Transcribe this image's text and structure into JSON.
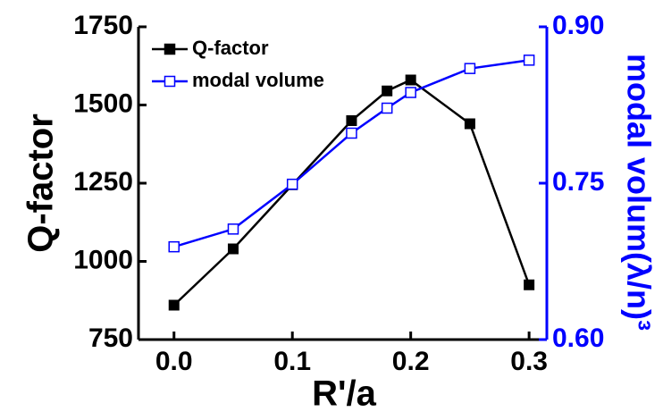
{
  "chart_data": {
    "type": "line",
    "x_label": "R'/a",
    "y_label": "Q-factor",
    "y2_label": "modal volum(λ/n)³",
    "xlim": [
      -0.03,
      0.315
    ],
    "xticks": [
      {
        "value": 0,
        "label": "0.0"
      },
      {
        "value": 0.1,
        "label": "0.1"
      },
      {
        "value": 0.2,
        "label": "0.2"
      },
      {
        "value": 0.3,
        "label": "0.3"
      }
    ],
    "ylim": [
      750,
      1750
    ],
    "yticks": [
      750,
      1000,
      1250,
      1500,
      1750
    ],
    "y2lim": [
      0.6,
      0.9
    ],
    "y2ticks": [
      {
        "value": 0.6,
        "label": "0.60"
      },
      {
        "value": 0.75,
        "label": "0.75"
      },
      {
        "value": 0.9,
        "label": "0.90"
      }
    ],
    "legend": "upper left",
    "series": [
      {
        "name": "Q-factor",
        "color": "#000000",
        "marker": "filled-square",
        "x": [
          0,
          0.05,
          0.1,
          0.15,
          0.18,
          0.2,
          0.25,
          0.3
        ],
        "values": [
          860,
          1040,
          1245,
          1450,
          1545,
          1580,
          1440,
          925
        ]
      },
      {
        "name": "modal volume",
        "color": "#0000ff",
        "marker": "open-square",
        "axis": "y2",
        "x": [
          0,
          0.05,
          0.1,
          0.15,
          0.18,
          0.2,
          0.25,
          0.3
        ],
        "values": [
          0.689,
          0.706,
          0.749,
          0.798,
          0.822,
          0.837,
          0.86,
          0.868
        ]
      }
    ]
  }
}
